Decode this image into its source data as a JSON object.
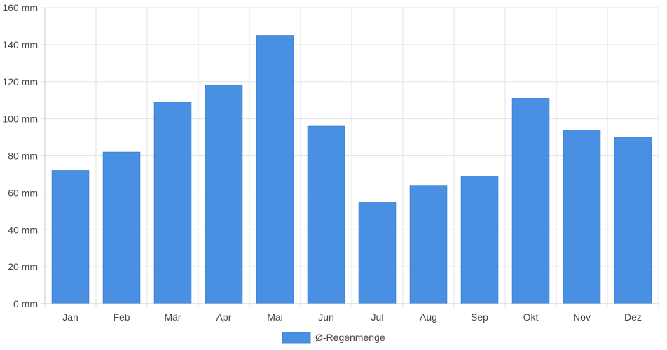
{
  "chart_data": {
    "type": "bar",
    "categories": [
      "Jan",
      "Feb",
      "Mär",
      "Apr",
      "Mai",
      "Jun",
      "Jul",
      "Aug",
      "Sep",
      "Okt",
      "Nov",
      "Dez"
    ],
    "series": [
      {
        "name": "Ø-Regenmenge",
        "color": "#4a90e2",
        "values": [
          72,
          82,
          109,
          118,
          145,
          96,
          55,
          64,
          69,
          111,
          94,
          90
        ]
      }
    ],
    "ylim": [
      0,
      160
    ],
    "yticks": [
      0,
      20,
      40,
      60,
      80,
      100,
      120,
      140,
      160
    ],
    "y_unit": "mm",
    "grid": true,
    "legend": "bottom-center"
  }
}
